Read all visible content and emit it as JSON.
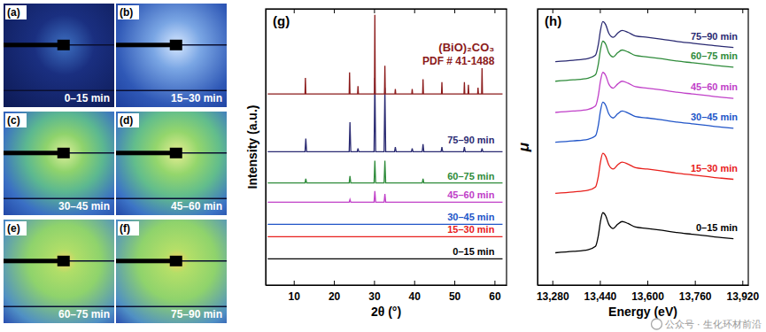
{
  "panels": [
    {
      "label": "(a)",
      "time": "0–15 min"
    },
    {
      "label": "(b)",
      "time": "15–30 min"
    },
    {
      "label": "(c)",
      "time": "30–45 min"
    },
    {
      "label": "(d)",
      "time": "45–60 min"
    },
    {
      "label": "(e)",
      "time": "60–75 min"
    },
    {
      "label": "(f)",
      "time": "75–90 min"
    }
  ],
  "chart_data": [
    {
      "type": "line",
      "title": "(g)",
      "x_label": "2θ (°)",
      "y_label": "Intensity (a.u.)",
      "xlim": [
        3,
        63
      ],
      "ylim": [
        0,
        100
      ],
      "xticks": [
        10,
        20,
        30,
        40,
        50,
        60
      ],
      "tick_labels": "x",
      "annotations": [
        "PDF # 41-1488"
      ],
      "series": [
        {
          "name": "0–15 min",
          "color": "#000000",
          "x": [
            3.5,
            62
          ],
          "values": [
            9.5,
            9.5
          ]
        },
        {
          "name": "15–30 min",
          "color": "#e8201c",
          "x": [
            3.5,
            62
          ],
          "values": [
            17.5,
            17.5
          ]
        },
        {
          "name": "30–45 min",
          "color": "#2155c8",
          "x": [
            3.5,
            62
          ],
          "values": [
            22,
            22
          ]
        },
        {
          "name": "45–60 min",
          "color": "#c040c8",
          "x": [
            3.5,
            23.8,
            24.0,
            24.2,
            30.0,
            30.2,
            30.4,
            32.5,
            32.7,
            32.9,
            62
          ],
          "values": [
            30,
            30,
            31,
            30,
            30,
            34,
            30,
            30,
            33,
            30,
            30
          ]
        },
        {
          "name": "60–75 min",
          "color": "#2e8b3a",
          "x": [
            3.5,
            12.8,
            13.0,
            13.2,
            23.8,
            24.0,
            24.2,
            30.0,
            30.2,
            30.4,
            32.5,
            32.7,
            32.9,
            42.0,
            42.2,
            42.4,
            62
          ],
          "values": [
            37,
            37,
            38.5,
            37,
            37,
            39.5,
            37,
            37,
            45,
            37,
            37,
            45,
            37,
            37,
            38.5,
            37,
            37
          ]
        },
        {
          "name": "75–90 min",
          "color": "#2a2a72",
          "x": [
            3.5,
            12.8,
            13.0,
            13.2,
            23.8,
            24.0,
            24.2,
            25.8,
            26.0,
            26.2,
            30.0,
            30.2,
            30.4,
            32.5,
            32.7,
            32.9,
            35.1,
            35.3,
            35.5,
            39.3,
            39.5,
            39.7,
            42.0,
            42.2,
            42.4,
            46.7,
            46.9,
            47.1,
            52.3,
            52.5,
            52.7,
            56.7,
            56.9,
            57.1,
            62
          ],
          "values": [
            48.3,
            48.3,
            53,
            48.3,
            48.3,
            59,
            48.3,
            48.3,
            49.5,
            48.3,
            48.3,
            75,
            48.3,
            48.3,
            71.4,
            48.3,
            48.3,
            50,
            48.3,
            48.3,
            49.5,
            48.3,
            48.3,
            51,
            48.3,
            48.3,
            50,
            48.3,
            48.3,
            50,
            48.3,
            48.3,
            49.5,
            48.3,
            48.3
          ]
        },
        {
          "name": "(BiO)₂CO₃",
          "color": "#8b1a1a",
          "x": [
            3.5,
            12.8,
            12.9,
            13.0,
            23.8,
            23.9,
            24.0,
            25.9,
            26.0,
            26.1,
            30.1,
            30.2,
            30.3,
            32.6,
            32.7,
            32.8,
            35.2,
            35.3,
            35.4,
            39.4,
            39.5,
            39.6,
            42.1,
            42.2,
            42.3,
            46.8,
            46.9,
            47.0,
            52.4,
            52.5,
            52.6,
            53.4,
            53.5,
            53.6,
            55.8,
            55.9,
            56.0,
            56.8,
            56.9,
            57.0,
            62
          ],
          "values": [
            69.2,
            69.2,
            75,
            69.2,
            69.2,
            77,
            69.2,
            69.2,
            72,
            69.2,
            69.2,
            97.8,
            69.2,
            69.2,
            79.4,
            69.2,
            69.2,
            71,
            69.2,
            69.2,
            71,
            69.2,
            69.2,
            74.5,
            69.2,
            69.2,
            73.5,
            69.2,
            69.2,
            73.5,
            69.2,
            69.2,
            72.5,
            69.2,
            69.2,
            71.5,
            69.2,
            69.2,
            78.5,
            69.2,
            69.2
          ]
        }
      ]
    },
    {
      "type": "line",
      "title": "(h)",
      "x_label": "Energy (eV)",
      "y_label": "μ",
      "xlim": [
        13230,
        13940
      ],
      "ylim": [
        0,
        100
      ],
      "xticks": [
        {
          "value": 13280,
          "label": "13,280"
        },
        {
          "value": 13440,
          "label": "13,440"
        },
        {
          "value": 13600,
          "label": "13,600"
        },
        {
          "value": 13760,
          "label": "13,760"
        },
        {
          "value": 13920,
          "label": "13,920"
        }
      ],
      "tick_labels": "x",
      "x": [
        13290,
        13350,
        13400,
        13425,
        13435,
        13442,
        13450,
        13460,
        13470,
        13485,
        13500,
        13515,
        13535,
        13560,
        13600,
        13650,
        13700,
        13750,
        13800,
        13850,
        13890
      ],
      "series": [
        {
          "name": "0–15 min",
          "color": "#000000",
          "values": [
            11.7,
            12.2,
            12.8,
            14.0,
            18.0,
            23.0,
            26.2,
            25.0,
            22.0,
            20.5,
            22.0,
            23.0,
            22.3,
            21.0,
            20.5,
            19.8,
            19.0,
            18.4,
            17.8,
            17.2,
            16.8
          ]
        },
        {
          "name": "15–30 min",
          "color": "#e8201c",
          "values": [
            33.2,
            33.7,
            34.3,
            35.5,
            39.5,
            44.5,
            47.7,
            46.5,
            43.5,
            42.0,
            43.5,
            44.5,
            43.8,
            42.5,
            42.0,
            41.3,
            40.5,
            39.9,
            39.3,
            38.7,
            38.3
          ]
        },
        {
          "name": "30–45 min",
          "color": "#2155c8",
          "values": [
            51.7,
            52.2,
            52.8,
            54.0,
            58.0,
            63.0,
            66.2,
            65.0,
            62.0,
            60.5,
            62.0,
            63.0,
            62.3,
            61.0,
            60.5,
            59.8,
            59.0,
            58.4,
            57.8,
            57.2,
            56.8
          ]
        },
        {
          "name": "45–60 min",
          "color": "#c040c8",
          "values": [
            62.5,
            63.0,
            63.6,
            64.8,
            68.8,
            73.8,
            77.0,
            75.8,
            72.8,
            71.3,
            72.8,
            73.8,
            73.1,
            71.8,
            71.3,
            70.6,
            69.8,
            69.2,
            68.6,
            68.0,
            67.6
          ]
        },
        {
          "name": "60–75 min",
          "color": "#2e8b3a",
          "values": [
            73.8,
            74.3,
            74.9,
            76.1,
            80.1,
            85.1,
            88.3,
            87.1,
            84.1,
            82.6,
            84.1,
            85.1,
            84.4,
            83.1,
            82.6,
            81.9,
            81.1,
            80.5,
            79.9,
            79.3,
            78.9
          ]
        },
        {
          "name": "75–90 min",
          "color": "#2a2a72",
          "values": [
            80.9,
            81.4,
            82.0,
            83.2,
            87.2,
            92.2,
            95.4,
            94.2,
            91.2,
            89.7,
            91.2,
            92.2,
            91.5,
            90.2,
            89.7,
            89.0,
            88.2,
            87.6,
            87.0,
            86.4,
            86.0
          ]
        }
      ]
    }
  ],
  "watermark": "公众号 · 生化环材前沿"
}
